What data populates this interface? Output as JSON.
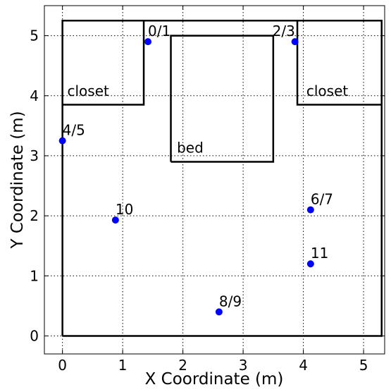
{
  "chart_data": {
    "type": "scatter",
    "xlabel": "X Coordinate (m)",
    "ylabel": "Y Coordinate (m)",
    "xlim": [
      -0.3,
      5.35
    ],
    "ylim": [
      -0.3,
      5.5
    ],
    "xticks": [
      0,
      1,
      2,
      3,
      4,
      5
    ],
    "yticks": [
      0,
      1,
      2,
      3,
      4,
      5
    ],
    "grid": true,
    "series": [
      {
        "color": "#0000ff",
        "x": [
          1.42,
          3.86,
          0,
          0.88,
          4.12,
          4.12,
          2.6
        ],
        "values": [
          4.9,
          4.9,
          3.25,
          1.93,
          2.1,
          1.2,
          0.4
        ],
        "point_labels": [
          "0/1",
          "2/3",
          "4/5",
          "10",
          "6/7",
          "11",
          "8/9"
        ]
      }
    ],
    "shapes": [
      {
        "points": [
          [
            0,
            0
          ],
          [
            5.3,
            0
          ],
          [
            5.3,
            5.25
          ],
          [
            0,
            5.25
          ],
          [
            0,
            0
          ]
        ]
      },
      {
        "label": "closet",
        "label_at": [
          0.08,
          4.0
        ],
        "points": [
          [
            0,
            3.85
          ],
          [
            1.35,
            3.85
          ],
          [
            1.35,
            5.25
          ]
        ]
      },
      {
        "label": "closet",
        "label_at": [
          4.05,
          4.0
        ],
        "points": [
          [
            3.9,
            5.25
          ],
          [
            3.9,
            3.85
          ],
          [
            5.3,
            3.85
          ]
        ]
      },
      {
        "label": "bed",
        "label_at": [
          1.9,
          3.05
        ],
        "points": [
          [
            1.8,
            2.9
          ],
          [
            3.5,
            2.9
          ],
          [
            3.5,
            5.0
          ],
          [
            1.8,
            5.0
          ],
          [
            1.8,
            2.9
          ]
        ]
      }
    ]
  }
}
